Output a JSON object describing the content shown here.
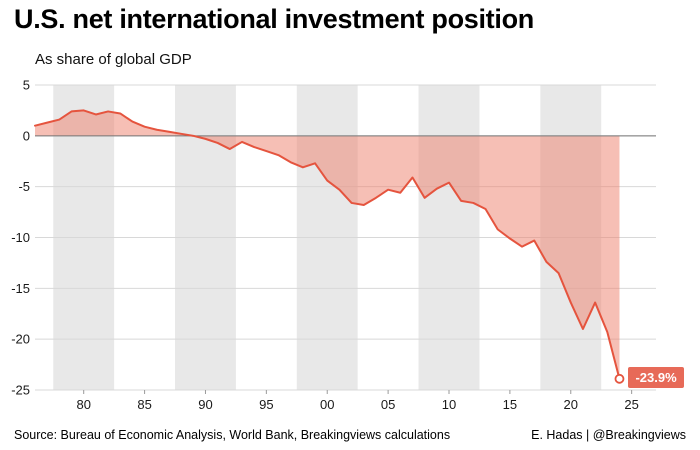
{
  "header": {
    "title": "U.S. net international investment position",
    "subtitle": "As share of global GDP"
  },
  "footer": {
    "source": "Source: Bureau of Economic Analysis, World Bank, Breakingviews calculations",
    "credit": "E. Hadas | @Breakingviews"
  },
  "chart_data": {
    "type": "area",
    "title": "U.S. net international investment position",
    "subtitle": "As share of global GDP",
    "xlabel": "",
    "ylabel": "",
    "unit": "% of global GDP",
    "xlim": [
      1976,
      2027
    ],
    "ylim": [
      -25,
      5
    ],
    "yticks": [
      5,
      0,
      -5,
      -10,
      -15,
      -20,
      -25
    ],
    "xticks": [
      {
        "year": 1980,
        "label": "80"
      },
      {
        "year": 1985,
        "label": "85"
      },
      {
        "year": 1990,
        "label": "90"
      },
      {
        "year": 1995,
        "label": "95"
      },
      {
        "year": 2000,
        "label": "00"
      },
      {
        "year": 2005,
        "label": "05"
      },
      {
        "year": 2010,
        "label": "10"
      },
      {
        "year": 2015,
        "label": "15"
      },
      {
        "year": 2020,
        "label": "20"
      },
      {
        "year": 2025,
        "label": "25"
      }
    ],
    "bands": [
      [
        1977.5,
        1982.5
      ],
      [
        1987.5,
        1992.5
      ],
      [
        1997.5,
        2002.5
      ],
      [
        2007.5,
        2012.5
      ],
      [
        2017.5,
        2022.5
      ]
    ],
    "x": [
      1976,
      1977,
      1978,
      1979,
      1980,
      1981,
      1982,
      1983,
      1984,
      1985,
      1986,
      1987,
      1988,
      1989,
      1990,
      1991,
      1992,
      1993,
      1994,
      1995,
      1996,
      1997,
      1998,
      1999,
      2000,
      2001,
      2002,
      2003,
      2004,
      2005,
      2006,
      2007,
      2008,
      2009,
      2010,
      2011,
      2012,
      2013,
      2014,
      2015,
      2016,
      2017,
      2018,
      2019,
      2020,
      2021,
      2022,
      2023,
      2024
    ],
    "values": [
      1.0,
      1.3,
      1.6,
      2.4,
      2.5,
      2.1,
      2.4,
      2.2,
      1.4,
      0.9,
      0.6,
      0.4,
      0.2,
      0.0,
      -0.3,
      -0.7,
      -1.3,
      -0.6,
      -1.1,
      -1.5,
      -1.9,
      -2.6,
      -3.1,
      -2.7,
      -4.4,
      -5.3,
      -6.6,
      -6.8,
      -6.1,
      -5.3,
      -5.6,
      -4.1,
      -6.1,
      -5.2,
      -4.6,
      -6.4,
      -6.6,
      -7.2,
      -9.2,
      -10.1,
      -10.9,
      -10.3,
      -12.4,
      -13.5,
      -16.4,
      -19.0,
      -16.4,
      -19.3,
      -23.9
    ],
    "end_point": {
      "year": 2024,
      "value": -23.9
    },
    "end_label": "-23.9%",
    "grid": true,
    "legend": "none",
    "colors": {
      "line": "#e5543e",
      "fill": "#ee7f6b",
      "fill_opacity": 0.5,
      "band": "#e8e8e8",
      "grid": "#d8d8d8",
      "zero_line": "#767676",
      "tick": "#9a9a9a",
      "label_bg": "#e76a58",
      "label_text": "#ffffff"
    }
  }
}
